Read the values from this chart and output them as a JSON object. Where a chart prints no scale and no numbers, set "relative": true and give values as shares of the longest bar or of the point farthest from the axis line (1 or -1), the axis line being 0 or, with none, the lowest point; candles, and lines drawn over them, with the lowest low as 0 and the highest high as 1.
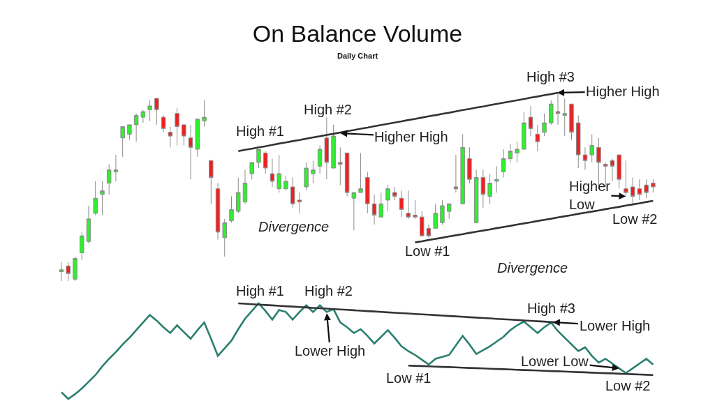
{
  "chart_data": [
    {
      "type": "candlestick",
      "title": "On Balance Volume",
      "subtitle": "Daily Chart",
      "relative": true,
      "categories": [
        null,
        null,
        null,
        null,
        null,
        null,
        null,
        null,
        null,
        null,
        null,
        null,
        null,
        null,
        null,
        null,
        null,
        null,
        null,
        null,
        null,
        null,
        null,
        null,
        null,
        null,
        null,
        null,
        null,
        null,
        null,
        null,
        null,
        null,
        null,
        null,
        null,
        null,
        null,
        null,
        null,
        null,
        null,
        null,
        null,
        null,
        null,
        null,
        null,
        null,
        null,
        null,
        null,
        null,
        null,
        null,
        null,
        null,
        null,
        null,
        null,
        null,
        null,
        null,
        null,
        null,
        null,
        null,
        null,
        null,
        null,
        null,
        null,
        null,
        null,
        null,
        null,
        null,
        null,
        null,
        null,
        null,
        null,
        null,
        null,
        null,
        null,
        null
      ],
      "ohlc": [
        [
          0.05,
          0.1,
          0.0,
          0.06
        ],
        [
          0.08,
          0.1,
          0.0,
          0.04
        ],
        [
          0.01,
          0.13,
          0.0,
          0.12
        ],
        [
          0.15,
          0.26,
          0.11,
          0.24
        ],
        [
          0.21,
          0.4,
          0.2,
          0.33
        ],
        [
          0.36,
          0.53,
          0.35,
          0.44
        ],
        [
          0.46,
          0.53,
          0.35,
          0.48
        ],
        [
          0.52,
          0.62,
          0.46,
          0.59
        ],
        [
          0.58,
          0.67,
          0.53,
          0.59
        ],
        [
          0.76,
          0.82,
          0.66,
          0.82
        ],
        [
          0.78,
          0.83,
          0.75,
          0.83
        ],
        [
          0.83,
          0.89,
          0.74,
          0.88
        ],
        [
          0.87,
          0.91,
          0.84,
          0.9
        ],
        [
          0.91,
          0.96,
          0.85,
          0.93
        ],
        [
          0.97,
          0.97,
          0.83,
          0.91
        ],
        [
          0.87,
          0.88,
          0.79,
          0.81
        ],
        [
          0.79,
          0.82,
          0.71,
          0.77
        ],
        [
          0.89,
          0.92,
          0.72,
          0.82
        ],
        [
          0.83,
          0.83,
          0.72,
          0.77
        ],
        [
          0.76,
          0.83,
          0.54,
          0.71
        ],
        [
          0.7,
          0.86,
          0.66,
          0.86
        ],
        [
          0.85,
          0.96,
          0.82,
          0.87
        ],
        [
          0.64,
          0.64,
          0.41,
          0.55
        ],
        [
          0.49,
          0.52,
          0.22,
          0.26
        ],
        [
          0.23,
          0.33,
          0.13,
          0.31
        ],
        [
          0.32,
          0.45,
          0.31,
          0.38
        ],
        [
          0.37,
          0.55,
          0.36,
          0.47
        ],
        [
          0.42,
          0.59,
          0.41,
          0.52
        ],
        [
          0.57,
          0.63,
          0.54,
          0.63
        ],
        [
          0.63,
          0.7,
          0.6,
          0.7
        ],
        [
          0.68,
          0.69,
          0.57,
          0.6
        ],
        [
          0.57,
          0.65,
          0.5,
          0.53
        ],
        [
          0.49,
          0.67,
          0.47,
          0.57
        ],
        [
          0.49,
          0.56,
          0.48,
          0.53
        ],
        [
          0.5,
          0.55,
          0.39,
          0.41
        ],
        [
          0.43,
          0.47,
          0.36,
          0.42
        ],
        [
          0.5,
          0.63,
          0.48,
          0.6
        ],
        [
          0.57,
          0.64,
          0.52,
          0.59
        ],
        [
          0.61,
          0.72,
          0.57,
          0.7
        ],
        [
          0.76,
          0.87,
          0.54,
          0.63
        ],
        [
          0.6,
          0.83,
          0.6,
          0.77
        ],
        [
          0.63,
          0.71,
          0.51,
          0.62
        ],
        [
          0.68,
          0.68,
          0.45,
          0.47
        ],
        [
          0.44,
          0.47,
          0.27,
          0.47
        ],
        [
          0.47,
          0.68,
          0.47,
          0.49
        ],
        [
          0.55,
          0.58,
          0.36,
          0.41
        ],
        [
          0.41,
          0.46,
          0.3,
          0.35
        ],
        [
          0.34,
          0.47,
          0.34,
          0.41
        ],
        [
          0.43,
          0.51,
          0.37,
          0.49
        ],
        [
          0.47,
          0.5,
          0.43,
          0.45
        ],
        [
          0.44,
          0.48,
          0.34,
          0.38
        ],
        [
          0.36,
          0.48,
          0.33,
          0.34
        ],
        [
          0.35,
          0.43,
          0.33,
          0.34
        ],
        [
          0.34,
          0.37,
          0.24,
          0.24
        ],
        [
          0.28,
          0.3,
          0.23,
          0.24
        ],
        [
          0.28,
          0.41,
          0.28,
          0.36
        ],
        [
          0.31,
          0.43,
          0.3,
          0.4
        ],
        [
          0.37,
          0.41,
          0.33,
          0.41
        ],
        [
          0.5,
          0.67,
          0.47,
          0.49
        ],
        [
          0.41,
          0.78,
          0.41,
          0.71
        ],
        [
          0.65,
          0.71,
          0.52,
          0.54
        ],
        [
          0.31,
          0.59,
          0.31,
          0.55
        ],
        [
          0.55,
          0.59,
          0.39,
          0.46
        ],
        [
          0.45,
          0.57,
          0.41,
          0.52
        ],
        [
          0.53,
          0.61,
          0.47,
          0.54
        ],
        [
          0.58,
          0.7,
          0.55,
          0.65
        ],
        [
          0.65,
          0.73,
          0.63,
          0.69
        ],
        [
          0.68,
          0.74,
          0.63,
          0.7
        ],
        [
          0.7,
          0.9,
          0.7,
          0.84
        ],
        [
          0.87,
          0.93,
          0.77,
          0.81
        ],
        [
          0.78,
          0.83,
          0.69,
          0.74
        ],
        [
          0.79,
          0.89,
          0.77,
          0.84
        ],
        [
          0.84,
          0.96,
          0.83,
          0.94
        ],
        [
          0.9,
          1.0,
          0.83,
          0.89
        ],
        [
          0.88,
          0.97,
          0.77,
          0.89
        ],
        [
          0.94,
          0.94,
          0.75,
          0.79
        ],
        [
          0.84,
          0.88,
          0.6,
          0.67
        ],
        [
          0.67,
          0.71,
          0.59,
          0.64
        ],
        [
          0.67,
          0.78,
          0.63,
          0.72
        ],
        [
          0.71,
          0.76,
          0.49,
          0.63
        ],
        [
          0.62,
          0.63,
          0.5,
          0.61
        ],
        [
          0.64,
          0.65,
          0.53,
          0.61
        ],
        [
          0.67,
          0.67,
          0.49,
          0.54
        ],
        [
          0.49,
          0.64,
          0.45,
          0.47
        ],
        [
          0.5,
          0.55,
          0.41,
          0.45
        ],
        [
          0.49,
          0.54,
          0.43,
          0.46
        ],
        [
          0.51,
          0.54,
          0.44,
          0.47
        ],
        [
          0.52,
          0.54,
          0.47,
          0.5
        ]
      ],
      "series": [
        {
          "type": "line",
          "color": "#333333",
          "values": [
            null,
            null,
            null,
            null,
            null,
            null,
            null,
            null,
            null,
            null,
            null,
            null,
            null,
            null,
            null,
            null,
            null,
            null,
            null,
            null,
            null,
            null,
            null,
            null,
            null,
            null,
            0.69,
            0.697,
            0.703,
            0.71,
            0.716,
            0.723,
            0.73,
            0.736,
            0.743,
            0.749,
            0.756,
            0.763,
            0.769,
            0.776,
            0.782,
            0.789,
            0.796,
            0.802,
            0.809,
            0.815,
            0.822,
            0.829,
            0.835,
            0.842,
            0.848,
            0.855,
            0.861,
            0.868,
            0.875,
            0.881,
            0.888,
            0.894,
            0.901,
            0.908,
            0.914,
            0.921,
            0.927,
            0.934,
            0.941,
            0.947,
            0.954,
            0.96,
            0.967,
            0.974,
            0.98,
            0.987,
            0.993,
            1.0,
            null,
            null,
            null,
            null,
            null,
            null,
            null,
            null,
            null,
            null,
            null,
            null,
            null,
            null
          ]
        },
        {
          "type": "line",
          "color": "#333333",
          "values": [
            null,
            null,
            null,
            null,
            null,
            null,
            null,
            null,
            null,
            null,
            null,
            null,
            null,
            null,
            null,
            null,
            null,
            null,
            null,
            null,
            null,
            null,
            null,
            null,
            null,
            null,
            null,
            null,
            null,
            null,
            null,
            null,
            null,
            null,
            null,
            null,
            null,
            null,
            null,
            null,
            null,
            null,
            null,
            null,
            null,
            null,
            null,
            null,
            null,
            null,
            null,
            null,
            0.205,
            0.211,
            0.218,
            0.224,
            0.23,
            0.237,
            0.243,
            0.249,
            0.256,
            0.262,
            0.268,
            0.274,
            0.281,
            0.287,
            0.293,
            0.3,
            0.306,
            0.312,
            0.319,
            0.325,
            0.331,
            0.338,
            0.344,
            0.35,
            0.357,
            0.363,
            0.369,
            0.375,
            0.382,
            0.388,
            0.394,
            0.401,
            0.407,
            0.413,
            0.42,
            0.426
          ]
        }
      ],
      "annotations": [
        {
          "text": "High #1",
          "y": 0.7
        },
        {
          "text": "High #2",
          "y": 0.83
        },
        "Higher High",
        {
          "text": "High #3",
          "y": 1.0
        },
        "Higher High",
        "Higher\nLow",
        {
          "text": "Low #2",
          "y": 0.43
        },
        {
          "text": "Low #1",
          "y": 0.23
        },
        "Divergence",
        "Divergence"
      ]
    },
    {
      "type": "line",
      "relative": true,
      "categories": [
        null,
        null,
        null,
        null,
        null,
        null,
        null,
        null,
        null,
        null,
        null,
        null,
        null,
        null,
        null,
        null,
        null,
        null,
        null,
        null,
        null,
        null,
        null,
        null,
        null,
        null,
        null,
        null,
        null,
        null,
        null,
        null,
        null,
        null,
        null,
        null,
        null,
        null,
        null,
        null,
        null,
        null,
        null,
        null,
        null,
        null,
        null,
        null,
        null,
        null,
        null,
        null,
        null,
        null,
        null,
        null,
        null,
        null,
        null,
        null,
        null,
        null,
        null,
        null,
        null,
        null,
        null,
        null,
        null,
        null,
        null,
        null,
        null,
        null,
        null,
        null,
        null,
        null,
        null,
        null,
        null,
        null,
        null,
        null,
        null,
        null,
        null,
        null
      ],
      "series": [
        {
          "color": "#2a7f6f",
          "values": [
            0.07,
            0.0,
            0.05,
            0.11,
            0.18,
            0.25,
            0.34,
            0.42,
            0.49,
            0.57,
            0.64,
            0.72,
            0.8,
            0.88,
            0.82,
            0.75,
            0.69,
            0.77,
            0.7,
            0.63,
            0.72,
            0.8,
            0.63,
            0.45,
            0.53,
            0.61,
            0.73,
            0.84,
            0.92,
            1.0,
            0.92,
            0.83,
            0.93,
            0.91,
            0.83,
            0.91,
            0.98,
            0.91,
            0.98,
            0.91,
            0.94,
            0.8,
            0.75,
            0.69,
            0.73,
            0.66,
            0.58,
            0.65,
            0.72,
            0.64,
            0.55,
            0.5,
            0.46,
            0.41,
            0.36,
            0.42,
            0.44,
            0.46,
            0.56,
            0.66,
            0.57,
            0.47,
            0.51,
            0.55,
            0.6,
            0.65,
            0.72,
            0.77,
            0.81,
            0.75,
            0.69,
            0.75,
            0.8,
            0.71,
            0.64,
            0.57,
            0.5,
            0.54,
            0.45,
            0.38,
            0.42,
            0.37,
            0.32,
            0.27,
            0.32,
            0.37,
            0.42,
            0.36
          ]
        },
        {
          "type": "line",
          "color": "#333333",
          "values": [
            null,
            null,
            null,
            null,
            null,
            null,
            null,
            null,
            null,
            null,
            null,
            null,
            null,
            null,
            null,
            null,
            null,
            null,
            null,
            null,
            null,
            null,
            null,
            null,
            null,
            null,
            1.0,
            0.996,
            0.991,
            0.987,
            0.983,
            0.979,
            0.974,
            0.97,
            0.966,
            0.962,
            0.957,
            0.953,
            0.949,
            0.945,
            0.94,
            0.936,
            0.932,
            0.928,
            0.923,
            0.919,
            0.915,
            0.911,
            0.906,
            0.902,
            0.898,
            0.894,
            0.889,
            0.885,
            0.881,
            0.877,
            0.872,
            0.868,
            0.864,
            0.86,
            0.855,
            0.851,
            0.847,
            0.843,
            0.838,
            0.834,
            0.83,
            0.826,
            0.821,
            0.817,
            0.813,
            0.809,
            0.804,
            0.8,
            null,
            null,
            null,
            null,
            null,
            null,
            null,
            null,
            null,
            null,
            null,
            null,
            null,
            null
          ]
        },
        {
          "type": "line",
          "color": "#333333",
          "values": [
            null,
            null,
            null,
            null,
            null,
            null,
            null,
            null,
            null,
            null,
            null,
            null,
            null,
            null,
            null,
            null,
            null,
            null,
            null,
            null,
            null,
            null,
            null,
            null,
            null,
            null,
            null,
            null,
            null,
            null,
            null,
            null,
            null,
            null,
            null,
            null,
            null,
            null,
            null,
            null,
            null,
            null,
            null,
            null,
            null,
            null,
            null,
            null,
            null,
            null,
            null,
            0.349,
            0.346,
            0.344,
            0.341,
            0.338,
            0.335,
            0.333,
            0.33,
            0.327,
            0.324,
            0.322,
            0.319,
            0.316,
            0.313,
            0.311,
            0.308,
            0.305,
            0.302,
            0.3,
            0.297,
            0.294,
            0.291,
            0.289,
            0.286,
            0.283,
            0.28,
            0.278,
            0.275,
            0.272,
            0.269,
            0.267,
            0.264,
            0.261,
            0.258,
            0.256,
            0.253,
            0.25
          ]
        }
      ],
      "annotations": [
        {
          "text": "High #1",
          "y": 1.0
        },
        {
          "text": "High #2",
          "y": 0.98
        },
        {
          "text": "Lower High",
          "y": 0.91
        },
        {
          "text": "High #3",
          "y": 0.8
        },
        "Lower High",
        {
          "text": "Low #1",
          "y": 0.36
        },
        {
          "text": "Lower Low",
          "y": 0.32
        },
        {
          "text": "Low #2",
          "y": 0.27
        }
      ]
    }
  ]
}
